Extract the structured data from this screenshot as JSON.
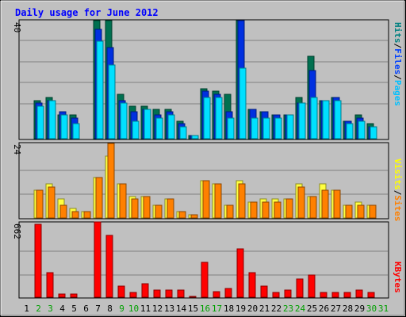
{
  "chart_data": {
    "type": "bar",
    "title": "Daily usage for June 2012",
    "categories": [
      "1",
      "2",
      "3",
      "4",
      "5",
      "6",
      "7",
      "8",
      "9",
      "10",
      "11",
      "12",
      "13",
      "14",
      "15",
      "16",
      "17",
      "18",
      "19",
      "20",
      "21",
      "22",
      "23",
      "24",
      "25",
      "26",
      "27",
      "28",
      "29",
      "30",
      "31"
    ],
    "weekend_days": [
      "2",
      "3",
      "9",
      "10",
      "16",
      "17",
      "23",
      "24",
      "30",
      "31"
    ],
    "panels": [
      {
        "name": "usage",
        "ymax": 40,
        "ylabel_parts": [
          "Pages",
          "Files",
          "Hits"
        ],
        "ylabel_colors": [
          "#00c0ff",
          "#0040ff",
          "#008080"
        ],
        "series": [
          {
            "name": "Hits",
            "color": "#007050",
            "values": [
              0,
              13,
              14,
              8,
              8,
              0,
              40,
              40,
              15,
              11,
              11,
              10,
              10,
              6,
              1,
              17,
              16,
              15,
              40,
              10,
              9,
              8,
              8,
              14,
              28,
              13,
              14,
              6,
              8,
              5,
              0
            ]
          },
          {
            "name": "Files",
            "color": "#0030e0",
            "values": [
              0,
              12,
              13,
              9,
              7,
              0,
              37,
              31,
              13,
              9,
              10,
              8,
              9,
              5,
              1,
              16,
              15,
              9,
              40,
              10,
              9,
              8,
              8,
              12,
              23,
              13,
              14,
              6,
              7,
              4,
              0
            ]
          },
          {
            "name": "Pages",
            "color": "#00e0ff",
            "values": [
              0,
              11,
              13,
              8,
              5,
              0,
              33,
              25,
              12,
              6,
              10,
              7,
              8,
              4,
              1,
              14,
              14,
              7,
              24,
              7,
              7,
              7,
              8,
              12,
              14,
              13,
              13,
              5,
              6,
              4,
              0
            ]
          }
        ]
      },
      {
        "name": "visits",
        "ymax": 24,
        "ylabel_parts": [
          "Sites",
          "Visits"
        ],
        "ylabel_colors": [
          "#ff8000",
          "#ffff00"
        ],
        "series": [
          {
            "name": "Visits",
            "color": "#ffff40",
            "values": [
              0,
              9,
              11,
              6,
              3,
              2,
              13,
              20,
              11,
              7,
              7,
              4,
              6,
              2,
              1,
              12,
              11,
              4,
              12,
              5,
              6,
              6,
              6,
              11,
              7,
              11,
              9,
              4,
              5,
              4,
              0
            ]
          },
          {
            "name": "Sites",
            "color": "#ff8000",
            "values": [
              0,
              9,
              10,
              4,
              2,
              2,
              13,
              24,
              11,
              6,
              7,
              4,
              6,
              2,
              1,
              12,
              11,
              4,
              11,
              5,
              5,
              5,
              6,
              10,
              7,
              9,
              9,
              4,
              4,
              4,
              0
            ]
          }
        ]
      },
      {
        "name": "kbytes",
        "ymax": 662,
        "ylabel_parts": [
          "KBytes"
        ],
        "ylabel_colors": [
          "#ff0000"
        ],
        "series": [
          {
            "name": "KBytes",
            "color": "#ff0000",
            "values": [
              0,
              650,
              220,
              25,
              30,
              0,
              670,
              550,
              100,
              40,
              120,
              60,
              60,
              60,
              10,
              310,
              50,
              80,
              430,
              220,
              100,
              40,
              60,
              160,
              200,
              40,
              40,
              40,
              60,
              40,
              0
            ]
          }
        ]
      }
    ]
  }
}
